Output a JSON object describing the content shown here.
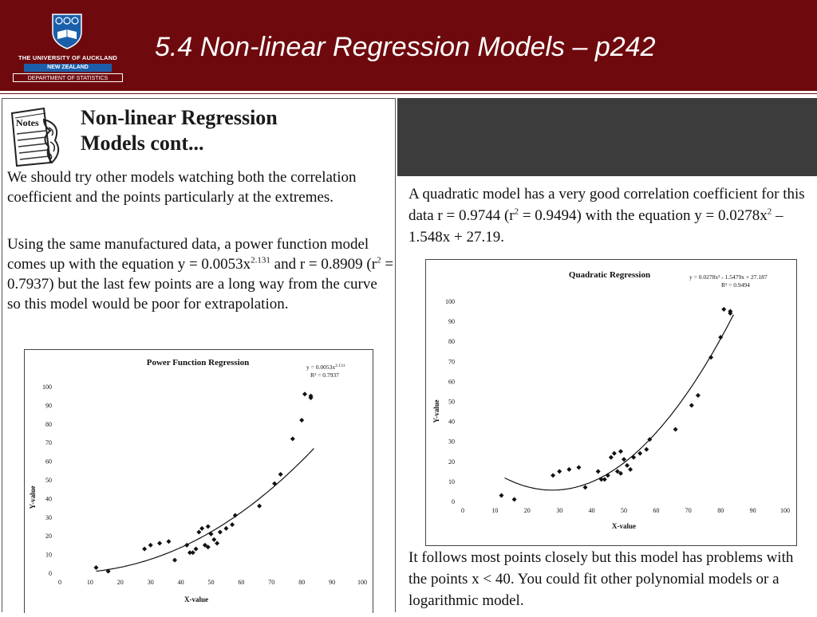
{
  "header": {
    "title": "5.4 Non-linear Regression Models – p242",
    "logo": {
      "university": "THE UNIVERSITY OF AUCKLAND",
      "country": "NEW ZEALAND",
      "department": "DEPARTMENT OF STATISTICS",
      "icon": "crest-icon"
    }
  },
  "colors": {
    "header_bg": "#6e0a0e",
    "dark_block": "#3c3c3c"
  },
  "left": {
    "notes_label": "Notes",
    "heading_line1": "Non-linear Regression",
    "heading_line2": "Models cont...",
    "para1": "We should try other models watching both the correlation coefficient and the points particularly at the extremes.",
    "para2_a": "Using the same manufactured data, a power function model comes up with the equation y = 0.0053x",
    "para2_sup": "2.131",
    "para2_b": " and r = 0.8909 (r",
    "para2_sup2": "2",
    "para2_c": " = 0.7937) but the last few points are a long way from the curve so this model would be poor for extrapolation."
  },
  "right": {
    "para1_a": "A quadratic model has a very good correlation coefficient for this data r = 0.9744 (r",
    "para1_sup": "2",
    "para1_b": " = 0.9494) with the equation y = 0.0278x",
    "para1_sup2": "2",
    "para1_c": " – 1.548x + 27.19.",
    "para2": "It follows most points closely but this model has problems with the points x < 40.  You could fit other polynomial models or a logarithmic model."
  },
  "chart_data": [
    {
      "type": "scatter",
      "title": "Power Function Regression",
      "equation": "y = 0.0053x",
      "equation_sup": "2.131",
      "r2_label": "R² = 0.7937",
      "xlabel": "X-value",
      "ylabel": "Y-value",
      "xlim": [
        0,
        100
      ],
      "ylim": [
        0,
        100
      ],
      "xticks": [
        "0",
        "10",
        "20",
        "30",
        "40",
        "50",
        "60",
        "70",
        "80",
        "90",
        "100"
      ],
      "yticks": [
        "0",
        "10",
        "20",
        "30",
        "40",
        "50",
        "60",
        "70",
        "80",
        "90",
        "100"
      ],
      "trendline": "power",
      "points": [
        [
          12,
          3
        ],
        [
          16,
          1
        ],
        [
          28,
          13
        ],
        [
          30,
          15
        ],
        [
          33,
          16
        ],
        [
          36,
          17
        ],
        [
          38,
          7
        ],
        [
          42,
          15
        ],
        [
          43,
          11
        ],
        [
          44,
          11
        ],
        [
          45,
          13
        ],
        [
          46,
          22
        ],
        [
          47,
          24
        ],
        [
          48,
          15
        ],
        [
          49,
          25
        ],
        [
          49,
          14
        ],
        [
          50,
          21
        ],
        [
          51,
          18
        ],
        [
          52,
          16
        ],
        [
          53,
          22
        ],
        [
          55,
          24
        ],
        [
          57,
          26
        ],
        [
          58,
          31
        ],
        [
          66,
          36
        ],
        [
          71,
          48
        ],
        [
          73,
          53
        ],
        [
          77,
          72
        ],
        [
          80,
          82
        ],
        [
          81,
          96
        ],
        [
          83,
          94
        ],
        [
          83,
          95
        ]
      ]
    },
    {
      "type": "scatter",
      "title": "Quadratic Regression",
      "equation": "y = 0.0278x² - 1.5479x + 27.187",
      "r2_label": "R² = 0.9494",
      "xlabel": "X-value",
      "ylabel": "Y-value",
      "xlim": [
        0,
        100
      ],
      "ylim": [
        0,
        100
      ],
      "xticks": [
        "0",
        "10",
        "20",
        "30",
        "40",
        "50",
        "60",
        "70",
        "80",
        "90",
        "100"
      ],
      "yticks": [
        "0",
        "10",
        "20",
        "30",
        "40",
        "50",
        "60",
        "70",
        "80",
        "90",
        "100"
      ],
      "trendline": "quadratic",
      "points": [
        [
          12,
          3
        ],
        [
          16,
          1
        ],
        [
          28,
          13
        ],
        [
          30,
          15
        ],
        [
          33,
          16
        ],
        [
          36,
          17
        ],
        [
          38,
          7
        ],
        [
          42,
          15
        ],
        [
          43,
          11
        ],
        [
          44,
          11
        ],
        [
          45,
          13
        ],
        [
          46,
          22
        ],
        [
          47,
          24
        ],
        [
          48,
          15
        ],
        [
          49,
          25
        ],
        [
          49,
          14
        ],
        [
          50,
          21
        ],
        [
          51,
          18
        ],
        [
          52,
          16
        ],
        [
          53,
          22
        ],
        [
          55,
          24
        ],
        [
          57,
          26
        ],
        [
          58,
          31
        ],
        [
          66,
          36
        ],
        [
          71,
          48
        ],
        [
          73,
          53
        ],
        [
          77,
          72
        ],
        [
          80,
          82
        ],
        [
          81,
          96
        ],
        [
          83,
          94
        ],
        [
          83,
          95
        ]
      ]
    }
  ]
}
